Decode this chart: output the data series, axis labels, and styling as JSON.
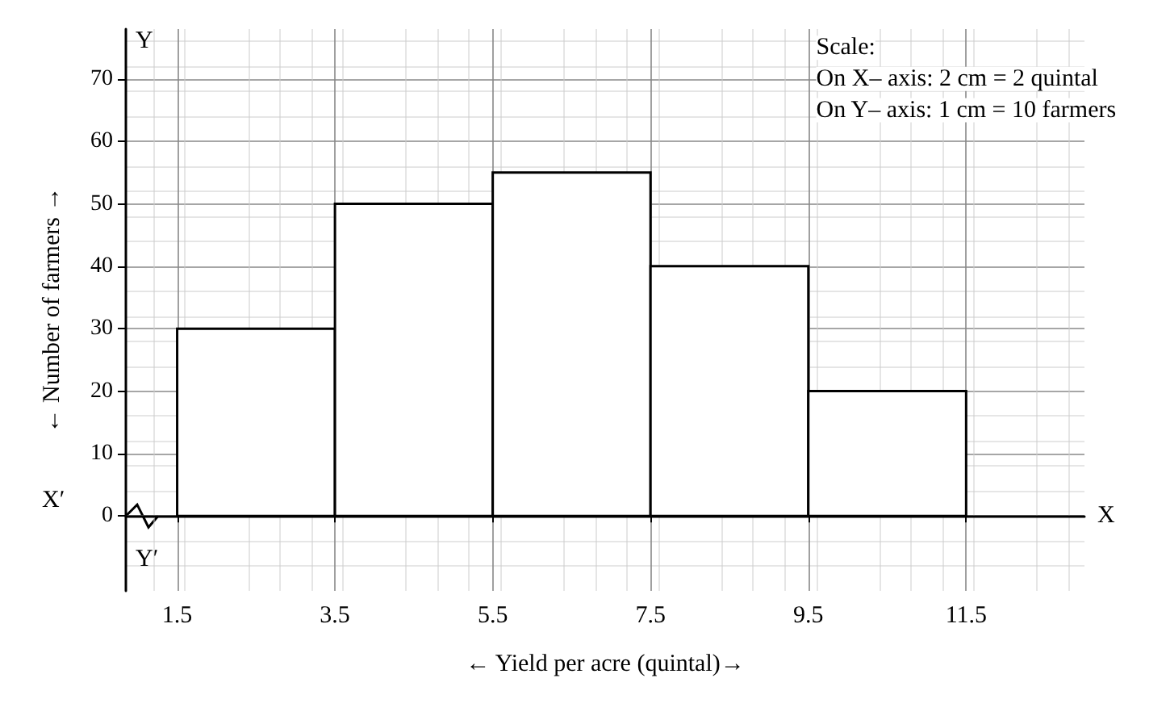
{
  "chart_data": {
    "type": "histogram",
    "xlabel": "← Yield per acre (quintal)→",
    "ylabel": "← Number of farmers →",
    "bins": [
      1.5,
      3.5,
      5.5,
      7.5,
      9.5,
      11.5
    ],
    "values": [
      30,
      50,
      55,
      40,
      20
    ],
    "color": "#ffffff",
    "xlim": [
      0.85,
      13
    ],
    "ylim": [
      -12,
      78
    ],
    "xticks": [
      1.5,
      3.5,
      5.5,
      7.5,
      9.5,
      11.5
    ],
    "yticks": [
      0,
      10,
      20,
      30,
      40,
      50,
      60,
      70
    ],
    "grid": true,
    "annotations": [
      "Scale:",
      "On X– axis: 2 cm = 2 quintal",
      "On Y– axis: 1 cm = 10 farmers",
      "X",
      "X′",
      "Y",
      "Y′"
    ]
  }
}
